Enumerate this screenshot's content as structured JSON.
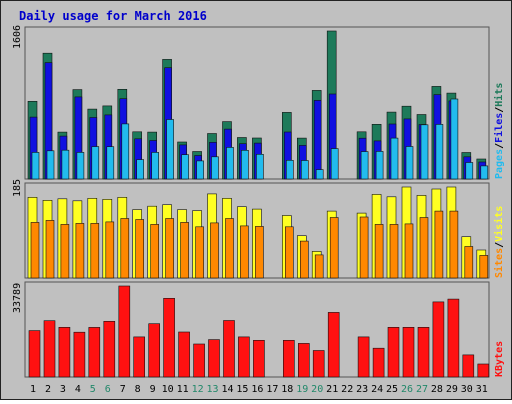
{
  "title": "Daily usage for March 2016",
  "colors": {
    "title": "#0000cc",
    "hits": "#1d7a5a",
    "files": "#1010e0",
    "pages": "#22bbee",
    "visits": "#ffff22",
    "sites": "#ff8800",
    "kbytes": "#ff1111",
    "weekend_label": "#22886a",
    "label_sep": "#000000",
    "plot_bg": "#c0c0c0"
  },
  "chart_data": [
    {
      "type": "bar",
      "panel": "top",
      "max_label": "1606",
      "ylim": [
        0,
        1606
      ],
      "legend": [
        {
          "name": "Pages",
          "color": "#22bbee"
        },
        {
          "name": "Files",
          "color": "#1010e0"
        },
        {
          "name": "Hits",
          "color": "#1d7a5a"
        }
      ],
      "categories": [
        "1",
        "2",
        "3",
        "4",
        "5",
        "6",
        "7",
        "8",
        "9",
        "10",
        "11",
        "12",
        "13",
        "14",
        "15",
        "16",
        "17",
        "18",
        "19",
        "20",
        "21",
        "22",
        "23",
        "24",
        "25",
        "26",
        "27",
        "28",
        "29",
        "30",
        "31"
      ],
      "series": [
        {
          "name": "Hits",
          "values": [
            843,
            1365,
            509,
            970,
            759,
            793,
            973,
            512,
            509,
            1298,
            402,
            298,
            494,
            623,
            450,
            445,
            null,
            723,
            444,
            961,
            1606,
            null,
            512,
            594,
            726,
            790,
            700,
            1005,
            932,
            288,
            217
          ]
        },
        {
          "name": "Files",
          "values": [
            672,
            1263,
            466,
            891,
            667,
            696,
            871,
            436,
            418,
            1208,
            370,
            255,
            398,
            541,
            383,
            390,
            null,
            510,
            365,
            853,
            922,
            null,
            443,
            413,
            597,
            652,
            591,
            916,
            848,
            241,
            185
          ]
        },
        {
          "name": "Pages",
          "values": [
            289,
            306,
            312,
            289,
            352,
            351,
            598,
            210,
            289,
            646,
            264,
            196,
            241,
            343,
            311,
            268,
            null,
            203,
            201,
            102,
            330,
            null,
            297,
            300,
            444,
            353,
            588,
            593,
            868,
            179,
            142
          ]
        }
      ]
    },
    {
      "type": "bar",
      "panel": "middle",
      "max_label": "185",
      "ylim": [
        0,
        185
      ],
      "legend": [
        {
          "name": "Sites",
          "color": "#ff8800"
        },
        {
          "name": "Visits",
          "color": "#ffff22"
        }
      ],
      "categories": [
        "1",
        "2",
        "3",
        "4",
        "5",
        "6",
        "7",
        "8",
        "9",
        "10",
        "11",
        "12",
        "13",
        "14",
        "15",
        "16",
        "17",
        "18",
        "19",
        "20",
        "21",
        "22",
        "23",
        "24",
        "25",
        "26",
        "27",
        "28",
        "29",
        "30",
        "31"
      ],
      "series": [
        {
          "name": "Visits",
          "values": [
            164,
            158,
            161,
            157,
            162,
            160,
            164,
            139,
            146,
            149,
            139,
            137,
            171,
            162,
            145,
            140,
            null,
            127,
            86,
            54,
            136,
            null,
            132,
            170,
            165,
            185,
            168,
            181,
            185,
            84,
            57
          ]
        },
        {
          "name": "Sites",
          "values": [
            113,
            117,
            109,
            111,
            111,
            114,
            121,
            119,
            109,
            121,
            113,
            104,
            112,
            121,
            106,
            105,
            null,
            104,
            75,
            47,
            123,
            null,
            124,
            109,
            109,
            110,
            123,
            136,
            136,
            64,
            46
          ]
        }
      ]
    },
    {
      "type": "bar",
      "panel": "bottom",
      "max_label": "33789",
      "ylim": [
        0,
        33789
      ],
      "legend": [
        {
          "name": "KBytes",
          "color": "#ff1111"
        }
      ],
      "categories": [
        "1",
        "2",
        "3",
        "4",
        "5",
        "6",
        "7",
        "8",
        "9",
        "10",
        "11",
        "12",
        "13",
        "14",
        "15",
        "16",
        "17",
        "18",
        "19",
        "20",
        "21",
        "22",
        "23",
        "24",
        "25",
        "26",
        "27",
        "28",
        "29",
        "30",
        "31"
      ],
      "series": [
        {
          "name": "KBytes",
          "values": [
            17240,
            20895,
            18436,
            16623,
            18435,
            20665,
            33789,
            14885,
            19779,
            29219,
            16700,
            12240,
            13895,
            20993,
            14883,
            13624,
            null,
            13624,
            12473,
            9858,
            23981,
            null,
            14883,
            10689,
            18436,
            18437,
            18437,
            27890,
            28931,
            8194,
            4830
          ]
        }
      ],
      "weekend_days": [
        "5",
        "6",
        "12",
        "13",
        "19",
        "20",
        "26",
        "27"
      ]
    }
  ]
}
